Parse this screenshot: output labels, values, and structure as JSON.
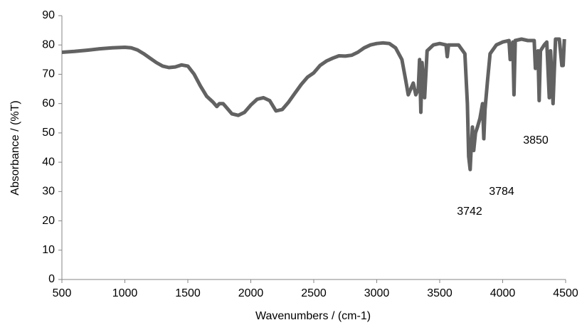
{
  "chart_data": {
    "type": "line",
    "x_label": "Wavenumbers / (cm-1)",
    "y_label": "Absorbance / (%T)",
    "xlim": [
      500,
      4500
    ],
    "xticks": [
      500,
      1000,
      1500,
      2000,
      2500,
      3000,
      3500,
      4000,
      4500
    ],
    "ylim": [
      0,
      90
    ],
    "yticks": [
      0,
      10,
      20,
      30,
      40,
      50,
      60,
      70,
      80,
      90
    ],
    "grid": false,
    "annotations": [
      "3742",
      "3784",
      "3850"
    ],
    "x": [
      500,
      600,
      700,
      800,
      900,
      1000,
      1050,
      1100,
      1150,
      1200,
      1250,
      1300,
      1350,
      1400,
      1450,
      1500,
      1550,
      1600,
      1650,
      1700,
      1730,
      1750,
      1780,
      1800,
      1850,
      1900,
      1950,
      2000,
      2050,
      2100,
      2150,
      2200,
      2250,
      2300,
      2350,
      2400,
      2450,
      2500,
      2550,
      2600,
      2650,
      2700,
      2750,
      2800,
      2850,
      2900,
      2950,
      3000,
      3050,
      3100,
      3150,
      3200,
      3230,
      3250,
      3270,
      3290,
      3310,
      3330,
      3340,
      3350,
      3360,
      3380,
      3400,
      3450,
      3500,
      3550,
      3560,
      3570,
      3650,
      3700,
      3720,
      3730,
      3742,
      3750,
      3760,
      3770,
      3784,
      3800,
      3820,
      3840,
      3850,
      3860,
      3880,
      3900,
      3950,
      4000,
      4050,
      4060,
      4080,
      4090,
      4100,
      4150,
      4200,
      4250,
      4260,
      4280,
      4290,
      4300,
      4330,
      4350,
      4370,
      4380,
      4400,
      4420,
      4450,
      4470,
      4480,
      4490
    ],
    "series": [
      {
        "color": "#626262",
        "values": [
          77.5,
          77.8,
          78.2,
          78.7,
          79,
          79.2,
          79,
          78.3,
          77,
          75.5,
          74,
          72.8,
          72.3,
          72.5,
          73.2,
          72.8,
          70,
          66,
          62.5,
          60.5,
          59,
          60,
          60,
          59,
          56.5,
          56,
          57,
          59.5,
          61.5,
          62,
          61,
          57.5,
          58,
          60.5,
          63.5,
          66.5,
          69,
          70.5,
          73,
          74.5,
          75.5,
          76.3,
          76.2,
          76.5,
          77.5,
          79,
          80,
          80.5,
          80.7,
          80.5,
          79,
          75,
          68,
          63,
          65,
          67,
          63,
          65,
          75,
          57,
          74,
          62,
          78,
          80,
          80.5,
          80,
          76,
          80,
          80,
          77,
          60,
          42,
          37.5,
          45,
          52,
          44,
          50,
          52,
          55,
          60,
          48,
          58,
          68,
          77,
          80,
          81,
          81.5,
          75,
          81,
          63,
          81.5,
          82,
          81.5,
          81.5,
          72,
          78,
          61,
          78,
          80,
          81,
          62,
          78,
          60,
          82,
          82,
          73,
          73,
          82
        ]
      }
    ]
  }
}
